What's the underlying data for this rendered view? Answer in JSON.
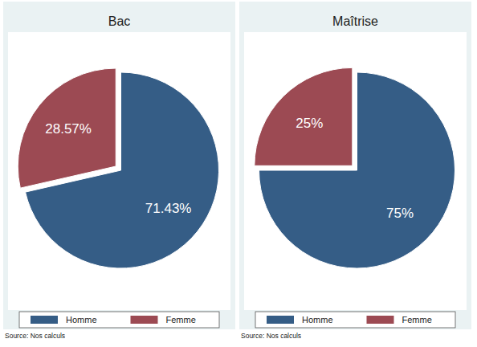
{
  "chart_data": [
    {
      "type": "pie",
      "title": "Bac",
      "categories": [
        "Homme",
        "Femme"
      ],
      "values": [
        71.43,
        28.57
      ],
      "value_labels": [
        "71.43%",
        "28.57%"
      ],
      "colors": [
        "#355d86",
        "#9c4a53"
      ],
      "data_labels": true,
      "legend": "bottom",
      "annotations": [
        "Source: Nos calculs"
      ]
    },
    {
      "type": "pie",
      "title": "Maîtrise",
      "categories": [
        "Homme",
        "Femme"
      ],
      "values": [
        75,
        25
      ],
      "value_labels": [
        "75%",
        "25%"
      ],
      "colors": [
        "#355d86",
        "#9c4a53"
      ],
      "data_labels": true,
      "legend": "bottom",
      "annotations": [
        "Source: Nos calculs"
      ]
    }
  ]
}
